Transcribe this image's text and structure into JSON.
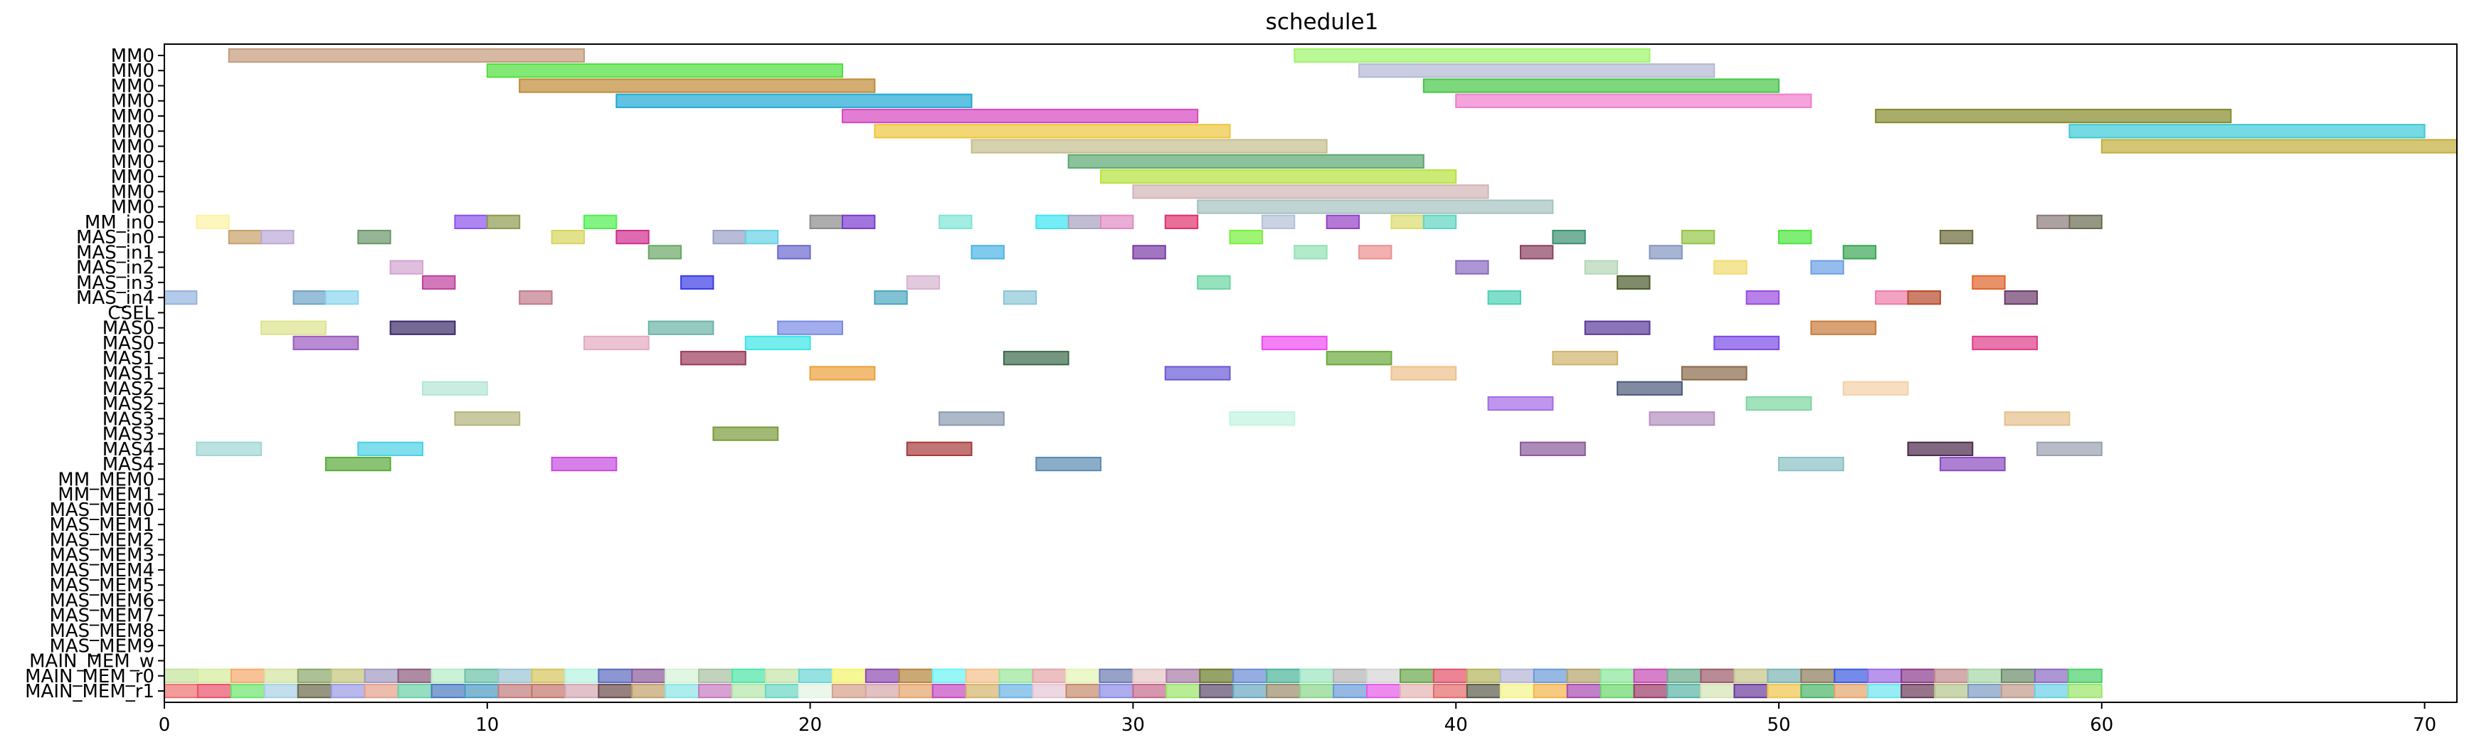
{
  "chart_data": {
    "type": "gantt",
    "title": "schedule1",
    "xlabel": "",
    "ylabel": "",
    "xlim": [
      0,
      71
    ],
    "x_ticks": [
      0,
      10,
      20,
      30,
      40,
      50,
      60,
      70
    ],
    "grid": false,
    "rows": [
      "MM0",
      "MM0",
      "MM0",
      "MM0",
      "MM0",
      "MM0",
      "MM0",
      "MM0",
      "MM0",
      "MM0",
      "MM0",
      "MM_in0",
      "MAS_in0",
      "MAS_in1",
      "MAS_in2",
      "MAS_in3",
      "MAS_in4",
      "CSEL",
      "MAS0",
      "MAS0",
      "MAS1",
      "MAS1",
      "MAS2",
      "MAS2",
      "MAS3",
      "MAS3",
      "MAS4",
      "MAS4",
      "MM_MEM0",
      "MM_MEM1",
      "MAS_MEM0",
      "MAS_MEM1",
      "MAS_MEM2",
      "MAS_MEM3",
      "MAS_MEM4",
      "MAS_MEM5",
      "MAS_MEM6",
      "MAS_MEM7",
      "MAS_MEM8",
      "MAS_MEM9",
      "MAIN_MEM_w",
      "MAIN_MEM_r0",
      "MAIN_MEM_r1"
    ],
    "tasks": [
      {
        "row": 0,
        "start": 2,
        "end": 13,
        "color": "#c49a7c"
      },
      {
        "row": 0,
        "start": 35,
        "end": 46,
        "color": "#9ef56a"
      },
      {
        "row": 1,
        "start": 10,
        "end": 21,
        "color": "#4fe03c"
      },
      {
        "row": 1,
        "start": 37,
        "end": 48,
        "color": "#b4b8d4"
      },
      {
        "row": 2,
        "start": 11,
        "end": 22,
        "color": "#c08a36"
      },
      {
        "row": 2,
        "start": 39,
        "end": 50,
        "color": "#46c646"
      },
      {
        "row": 3,
        "start": 14,
        "end": 25,
        "color": "#1ea8d6"
      },
      {
        "row": 3,
        "start": 40,
        "end": 51,
        "color": "#f07ccc"
      },
      {
        "row": 4,
        "start": 21,
        "end": 32,
        "color": "#d646c0"
      },
      {
        "row": 4,
        "start": 53,
        "end": 64,
        "color": "#848a2a"
      },
      {
        "row": 5,
        "start": 22,
        "end": 33,
        "color": "#eec63c"
      },
      {
        "row": 5,
        "start": 59,
        "end": 70,
        "color": "#3ccad6"
      },
      {
        "row": 6,
        "start": 25,
        "end": 36,
        "color": "#c4be8c"
      },
      {
        "row": 6,
        "start": 60,
        "end": 71,
        "color": "#c2ae3a"
      },
      {
        "row": 7,
        "start": 28,
        "end": 39,
        "color": "#5aa670"
      },
      {
        "row": 8,
        "start": 29,
        "end": 40,
        "color": "#b6e33c"
      },
      {
        "row": 9,
        "start": 30,
        "end": 41,
        "color": "#d2b4b6"
      },
      {
        "row": 10,
        "start": 32,
        "end": 43,
        "color": "#a4c2c0"
      },
      {
        "row": 11,
        "start": 1,
        "end": 2,
        "color": "#fcf2a4"
      },
      {
        "row": 11,
        "start": 9,
        "end": 10,
        "color": "#8a52f0"
      },
      {
        "row": 11,
        "start": 10,
        "end": 11,
        "color": "#8e9a4e"
      },
      {
        "row": 11,
        "start": 13,
        "end": 14,
        "color": "#4ef04e"
      },
      {
        "row": 11,
        "start": 20,
        "end": 21,
        "color": "#8a8a8a"
      },
      {
        "row": 11,
        "start": 21,
        "end": 22,
        "color": "#7a3ad0"
      },
      {
        "row": 11,
        "start": 24,
        "end": 25,
        "color": "#7ee6d6"
      },
      {
        "row": 11,
        "start": 27,
        "end": 28,
        "color": "#3ce6f0"
      },
      {
        "row": 11,
        "start": 28,
        "end": 29,
        "color": "#a8a0c0"
      },
      {
        "row": 11,
        "start": 29,
        "end": 30,
        "color": "#e08ac4"
      },
      {
        "row": 11,
        "start": 31,
        "end": 32,
        "color": "#e0306c"
      },
      {
        "row": 11,
        "start": 34,
        "end": 35,
        "color": "#b4c0d6"
      },
      {
        "row": 11,
        "start": 36,
        "end": 37,
        "color": "#9440c6"
      },
      {
        "row": 11,
        "start": 38,
        "end": 39,
        "color": "#dcdc6c"
      },
      {
        "row": 11,
        "start": 39,
        "end": 40,
        "color": "#5cd6c0"
      },
      {
        "row": 11,
        "start": 58,
        "end": 59,
        "color": "#8a7a7a"
      },
      {
        "row": 11,
        "start": 59,
        "end": 60,
        "color": "#6a6a50"
      },
      {
        "row": 12,
        "start": 2,
        "end": 3,
        "color": "#c8a068"
      },
      {
        "row": 12,
        "start": 3,
        "end": 4,
        "color": "#bca8d6"
      },
      {
        "row": 12,
        "start": 6,
        "end": 7,
        "color": "#6a966a"
      },
      {
        "row": 12,
        "start": 12,
        "end": 13,
        "color": "#d6d65c"
      },
      {
        "row": 12,
        "start": 14,
        "end": 15,
        "color": "#d02c8e"
      },
      {
        "row": 12,
        "start": 17,
        "end": 18,
        "color": "#9aa0c6"
      },
      {
        "row": 12,
        "start": 18,
        "end": 19,
        "color": "#66d2e6"
      },
      {
        "row": 12,
        "start": 33,
        "end": 34,
        "color": "#76f03c"
      },
      {
        "row": 12,
        "start": 43,
        "end": 44,
        "color": "#3a9070"
      },
      {
        "row": 12,
        "start": 47,
        "end": 48,
        "color": "#94c446"
      },
      {
        "row": 12,
        "start": 50,
        "end": 51,
        "color": "#4ae63c"
      },
      {
        "row": 12,
        "start": 55,
        "end": 56,
        "color": "#6a6a3a"
      },
      {
        "row": 13,
        "start": 15,
        "end": 16,
        "color": "#6aa664"
      },
      {
        "row": 13,
        "start": 19,
        "end": 20,
        "color": "#6a68d0"
      },
      {
        "row": 13,
        "start": 25,
        "end": 26,
        "color": "#4ab4e6"
      },
      {
        "row": 13,
        "start": 30,
        "end": 31,
        "color": "#7a3aa6"
      },
      {
        "row": 13,
        "start": 35,
        "end": 36,
        "color": "#92e2b4"
      },
      {
        "row": 13,
        "start": 37,
        "end": 38,
        "color": "#ec8e8e"
      },
      {
        "row": 13,
        "start": 42,
        "end": 43,
        "color": "#8a4060"
      },
      {
        "row": 13,
        "start": 46,
        "end": 47,
        "color": "#8294c0"
      },
      {
        "row": 13,
        "start": 52,
        "end": 53,
        "color": "#3aa654"
      },
      {
        "row": 14,
        "start": 7,
        "end": 8,
        "color": "#d2a4d0"
      },
      {
        "row": 14,
        "start": 40,
        "end": 41,
        "color": "#8a6ac0"
      },
      {
        "row": 14,
        "start": 44,
        "end": 45,
        "color": "#b4d6b4"
      },
      {
        "row": 14,
        "start": 48,
        "end": 49,
        "color": "#eedc6c"
      },
      {
        "row": 14,
        "start": 51,
        "end": 52,
        "color": "#6aa0e6"
      },
      {
        "row": 15,
        "start": 8,
        "end": 9,
        "color": "#c0409e"
      },
      {
        "row": 15,
        "start": 16,
        "end": 17,
        "color": "#3a3ae6"
      },
      {
        "row": 15,
        "start": 23,
        "end": 24,
        "color": "#d6b4d0"
      },
      {
        "row": 15,
        "start": 32,
        "end": 33,
        "color": "#6ad6a0"
      },
      {
        "row": 15,
        "start": 45,
        "end": 46,
        "color": "#4a5a2a"
      },
      {
        "row": 15,
        "start": 56,
        "end": 57,
        "color": "#e0642a"
      },
      {
        "row": 16,
        "start": 0,
        "end": 1,
        "color": "#94b4e0"
      },
      {
        "row": 16,
        "start": 4,
        "end": 5,
        "color": "#6ea4c8"
      },
      {
        "row": 16,
        "start": 5,
        "end": 6,
        "color": "#8ad6f0"
      },
      {
        "row": 16,
        "start": 11,
        "end": 12,
        "color": "#c07a8a"
      },
      {
        "row": 16,
        "start": 22,
        "end": 23,
        "color": "#4aa6c0"
      },
      {
        "row": 16,
        "start": 26,
        "end": 27,
        "color": "#8ac6d6"
      },
      {
        "row": 16,
        "start": 41,
        "end": 42,
        "color": "#4ad2b4"
      },
      {
        "row": 16,
        "start": 49,
        "end": 50,
        "color": "#9a4ae0"
      },
      {
        "row": 16,
        "start": 53,
        "end": 54,
        "color": "#f07aa6"
      },
      {
        "row": 16,
        "start": 54,
        "end": 55,
        "color": "#b84a2a"
      },
      {
        "row": 16,
        "start": 57,
        "end": 58,
        "color": "#6a3a6a"
      },
      {
        "row": 18,
        "start": 3,
        "end": 5,
        "color": "#dce48a"
      },
      {
        "row": 18,
        "start": 7,
        "end": 9,
        "color": "#3a2a6a"
      },
      {
        "row": 18,
        "start": 15,
        "end": 17,
        "color": "#6ab4a6"
      },
      {
        "row": 18,
        "start": 19,
        "end": 21,
        "color": "#7a8ae6"
      },
      {
        "row": 18,
        "start": 44,
        "end": 46,
        "color": "#5a3a9a"
      },
      {
        "row": 18,
        "start": 51,
        "end": 53,
        "color": "#c87a3a"
      },
      {
        "row": 19,
        "start": 4,
        "end": 6,
        "color": "#9a5ac0"
      },
      {
        "row": 19,
        "start": 13,
        "end": 15,
        "color": "#e4aac0"
      },
      {
        "row": 19,
        "start": 18,
        "end": 20,
        "color": "#3ae6e6"
      },
      {
        "row": 19,
        "start": 34,
        "end": 36,
        "color": "#ee4af0"
      },
      {
        "row": 19,
        "start": 48,
        "end": 50,
        "color": "#7a4ae6"
      },
      {
        "row": 19,
        "start": 56,
        "end": 58,
        "color": "#e03a8a"
      },
      {
        "row": 20,
        "start": 16,
        "end": 18,
        "color": "#9a3a5a"
      },
      {
        "row": 20,
        "start": 26,
        "end": 28,
        "color": "#3a6a4a"
      },
      {
        "row": 20,
        "start": 36,
        "end": 38,
        "color": "#6aaa3a"
      },
      {
        "row": 20,
        "start": 43,
        "end": 45,
        "color": "#d0b46a"
      },
      {
        "row": 21,
        "start": 20,
        "end": 22,
        "color": "#eca03a"
      },
      {
        "row": 21,
        "start": 31,
        "end": 33,
        "color": "#6a5ad6"
      },
      {
        "row": 21,
        "start": 38,
        "end": 40,
        "color": "#eec08a"
      },
      {
        "row": 21,
        "start": 47,
        "end": 49,
        "color": "#8a6a4a"
      },
      {
        "row": 22,
        "start": 8,
        "end": 10,
        "color": "#b4e6d6"
      },
      {
        "row": 22,
        "start": 45,
        "end": 47,
        "color": "#4a5a7a"
      },
      {
        "row": 22,
        "start": 52,
        "end": 54,
        "color": "#f4d0a6"
      },
      {
        "row": 23,
        "start": 41,
        "end": 43,
        "color": "#a46ae6"
      },
      {
        "row": 23,
        "start": 49,
        "end": 51,
        "color": "#7ad6a0"
      },
      {
        "row": 24,
        "start": 9,
        "end": 11,
        "color": "#b4b47a"
      },
      {
        "row": 24,
        "start": 24,
        "end": 26,
        "color": "#8a9ab0"
      },
      {
        "row": 24,
        "start": 33,
        "end": 35,
        "color": "#c0f4e0"
      },
      {
        "row": 24,
        "start": 46,
        "end": 48,
        "color": "#b490c0"
      },
      {
        "row": 24,
        "start": 57,
        "end": 59,
        "color": "#e4c08a"
      },
      {
        "row": 25,
        "start": 17,
        "end": 19,
        "color": "#7a9a3a"
      },
      {
        "row": 26,
        "start": 1,
        "end": 3,
        "color": "#a0d6d6"
      },
      {
        "row": 26,
        "start": 6,
        "end": 8,
        "color": "#4ad0e6"
      },
      {
        "row": 26,
        "start": 23,
        "end": 25,
        "color": "#a63a3a"
      },
      {
        "row": 26,
        "start": 42,
        "end": 44,
        "color": "#8a5a9a"
      },
      {
        "row": 26,
        "start": 54,
        "end": 56,
        "color": "#4a2a4a"
      },
      {
        "row": 26,
        "start": 58,
        "end": 60,
        "color": "#9aa0b0"
      },
      {
        "row": 27,
        "start": 5,
        "end": 7,
        "color": "#5aaa3a"
      },
      {
        "row": 27,
        "start": 12,
        "end": 14,
        "color": "#c84ae0"
      },
      {
        "row": 27,
        "start": 27,
        "end": 29,
        "color": "#5a8ab0"
      },
      {
        "row": 27,
        "start": 50,
        "end": 52,
        "color": "#8ac0c6"
      },
      {
        "row": 27,
        "start": 55,
        "end": 57,
        "color": "#8a4ac0"
      }
    ],
    "mem_w_colors": [
      "#c4e49a",
      "#d4ec9a",
      "#f4a86a",
      "#d4e4a0",
      "#8aa66a",
      "#c4c47a",
      "#a09ac0",
      "#8a5a7a",
      "#b4ecc4",
      "#6ac0a6",
      "#9ac4d6",
      "#d4c45a",
      "#b4f4e0",
      "#5a6ac0",
      "#8a5a9a",
      "#d4f4d4",
      "#a6c0a0",
      "#4ae6a6",
      "#c4e4a6",
      "#6ad6d6",
      "#f4f46a",
      "#8a4ab0",
      "#b4843a",
      "#6af4f4",
      "#f4c08a",
      "#9ae69a",
      "#e4a4a6",
      "#e4f4b4",
      "#6a7ab0",
      "#e4c4c4",
      "#a67aa6",
      "#6a7a2a",
      "#6a8ad6",
      "#4ab49a",
      "#9ae6c0",
      "#b4b4b4",
      "#d4d4d4",
      "#6aa64a",
      "#e4506a",
      "#b4b45a",
      "#b4b4d6",
      "#6a9ad6",
      "#b4a46a",
      "#8ae69a",
      "#c44ab4",
      "#6aaa8a",
      "#9a5a6a",
      "#c4c48a",
      "#7ab4b4",
      "#8a7a5a",
      "#3a5ae0",
      "#9a6ae6",
      "#8a3a8a",
      "#c08a8a",
      "#a6d6a6",
      "#6a8a6a",
      "#8a6ac0",
      "#4ad06a"
    ],
    "mem_r0_colors": [
      "#ee7070",
      "#e8506a",
      "#6ae66a",
      "#a6d0e4",
      "#6a6a4a",
      "#9a9ae6",
      "#e4a08a",
      "#6ad0a6",
      "#4a7ac0",
      "#4a9ac0",
      "#c07a7a",
      "#c0766a",
      "#d4a6b4",
      "#6a4a4a",
      "#c0a06a",
      "#8ae6e6",
      "#c47ac0",
      "#b4e6a6",
      "#6ad6c4",
      "#e4f4e4",
      "#d4a08a",
      "#d4a6a6",
      "#e4a46a",
      "#c44ac0",
      "#d4b46a",
      "#6ab4e6",
      "#e4c4d4",
      "#c48a6a",
      "#8a8ae6",
      "#c46a8a",
      "#9ae66a",
      "#5a4a6a",
      "#6aa6c0",
      "#9a8a6a",
      "#8ad68a",
      "#6a9ad6",
      "#e45ae6",
      "#e4b4b4",
      "#e46a6a",
      "#5a5a4a",
      "#f4f48a",
      "#f4b44a",
      "#a64ab0",
      "#6ad66a",
      "#9a3a6a",
      "#5ab4a6",
      "#d4e4b4",
      "#6a3a9a",
      "#f0c44a",
      "#4ab46a",
      "#e4a46a",
      "#6ae6f0",
      "#6a3a5a",
      "#b4c48a",
      "#7a9ac0",
      "#c09a8a",
      "#6ad0e6",
      "#9ae66a"
    ],
    "mem_start": 0,
    "mem_end": 60
  }
}
